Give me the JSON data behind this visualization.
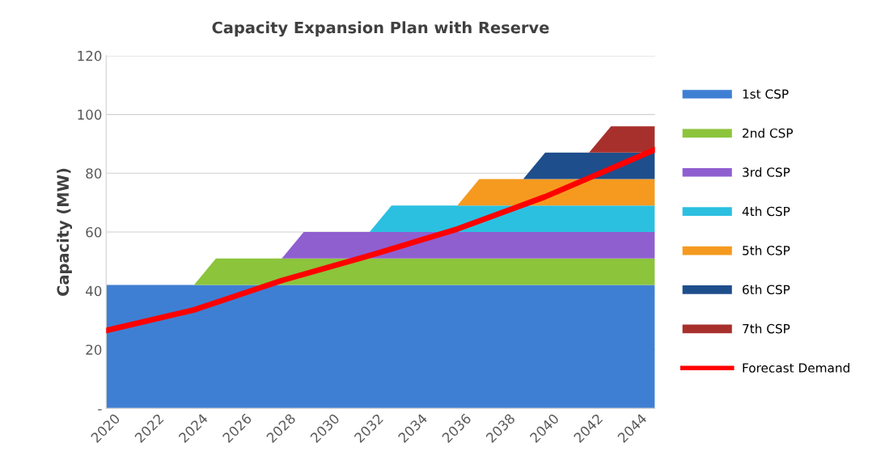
{
  "chart_data": {
    "type": "area",
    "stacked": true,
    "title": "Capacity Expansion Plan with Reserve",
    "ylabel": "Capacity (MW)",
    "x": [
      2020,
      2021,
      2022,
      2023,
      2024,
      2025,
      2026,
      2027,
      2028,
      2029,
      2030,
      2031,
      2032,
      2033,
      2034,
      2035,
      2036,
      2037,
      2038,
      2039,
      2040,
      2041,
      2042,
      2043,
      2044,
      2045
    ],
    "series": [
      {
        "name": "1st CSP",
        "color": "#3f7fd3",
        "values": [
          42,
          42,
          42,
          42,
          42,
          42,
          42,
          42,
          42,
          42,
          42,
          42,
          42,
          42,
          42,
          42,
          42,
          42,
          42,
          42,
          42,
          42,
          42,
          42,
          42,
          42
        ]
      },
      {
        "name": "2nd CSP",
        "color": "#8cc43c",
        "values": [
          0,
          0,
          0,
          0,
          0,
          9,
          9,
          9,
          9,
          9,
          9,
          9,
          9,
          9,
          9,
          9,
          9,
          9,
          9,
          9,
          9,
          9,
          9,
          9,
          9,
          9
        ]
      },
      {
        "name": "3rd CSP",
        "color": "#8f5fd0",
        "values": [
          0,
          0,
          0,
          0,
          0,
          0,
          0,
          0,
          0,
          9,
          9,
          9,
          9,
          9,
          9,
          9,
          9,
          9,
          9,
          9,
          9,
          9,
          9,
          9,
          9,
          9
        ]
      },
      {
        "name": "4th CSP",
        "color": "#2cc0e0",
        "values": [
          0,
          0,
          0,
          0,
          0,
          0,
          0,
          0,
          0,
          0,
          0,
          0,
          0,
          9,
          9,
          9,
          9,
          9,
          9,
          9,
          9,
          9,
          9,
          9,
          9,
          9
        ]
      },
      {
        "name": "5th CSP",
        "color": "#f59a1f",
        "values": [
          0,
          0,
          0,
          0,
          0,
          0,
          0,
          0,
          0,
          0,
          0,
          0,
          0,
          0,
          0,
          0,
          0,
          9,
          9,
          9,
          9,
          9,
          9,
          9,
          9,
          9
        ]
      },
      {
        "name": "6th CSP",
        "color": "#1f4e8c",
        "values": [
          0,
          0,
          0,
          0,
          0,
          0,
          0,
          0,
          0,
          0,
          0,
          0,
          0,
          0,
          0,
          0,
          0,
          0,
          0,
          0,
          9,
          9,
          9,
          9,
          9,
          9
        ]
      },
      {
        "name": "7th CSP",
        "color": "#a8302c",
        "values": [
          0,
          0,
          0,
          0,
          0,
          0,
          0,
          0,
          0,
          0,
          0,
          0,
          0,
          0,
          0,
          0,
          0,
          0,
          0,
          0,
          0,
          0,
          0,
          9,
          9,
          9
        ]
      },
      {
        "name": "Forecast Demand",
        "type": "line",
        "color": "#ff0000",
        "x": [
          2020,
          2024,
          2028,
          2032,
          2036,
          2040,
          2045
        ],
        "values": [
          26.5,
          33.5,
          43.5,
          52,
          61,
          72,
          88
        ]
      }
    ],
    "xlim": [
      2020,
      2045
    ],
    "xticks": [
      2020,
      2022,
      2024,
      2026,
      2028,
      2030,
      2032,
      2034,
      2036,
      2038,
      2040,
      2042,
      2044
    ],
    "ylim": [
      0,
      120
    ],
    "yticks": [
      {
        "value": 0,
        "label": "-"
      },
      20,
      40,
      60,
      80,
      100,
      120
    ],
    "grid": "y",
    "legend": "right"
  }
}
